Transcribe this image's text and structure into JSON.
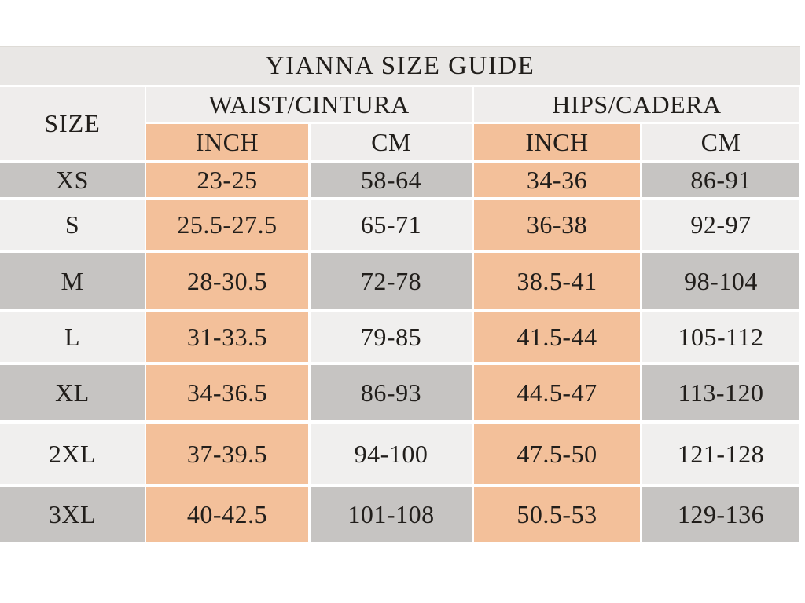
{
  "title": "YIANNA SIZE GUIDE",
  "table": {
    "size_header": "SIZE",
    "groups": [
      {
        "label": "WAIST/CINTURA"
      },
      {
        "label": "HIPS/CADERA"
      }
    ],
    "unit_headers": {
      "waist_inch": "INCH",
      "waist_cm": "CM",
      "hips_inch": "INCH",
      "hips_cm": "CM"
    },
    "rows": [
      {
        "size": "XS",
        "waist_inch": "23-25",
        "waist_cm": "58-64",
        "hips_inch": "34-36",
        "hips_cm": "86-91"
      },
      {
        "size": "S",
        "waist_inch": "25.5-27.5",
        "waist_cm": "65-71",
        "hips_inch": "36-38",
        "hips_cm": "92-97"
      },
      {
        "size": "M",
        "waist_inch": "28-30.5",
        "waist_cm": "72-78",
        "hips_inch": "38.5-41",
        "hips_cm": "98-104"
      },
      {
        "size": "L",
        "waist_inch": "31-33.5",
        "waist_cm": "79-85",
        "hips_inch": "41.5-44",
        "hips_cm": "105-112"
      },
      {
        "size": "XL",
        "waist_inch": "34-36.5",
        "waist_cm": "86-93",
        "hips_inch": "44.5-47",
        "hips_cm": "113-120"
      },
      {
        "size": "2XL",
        "waist_inch": "37-39.5",
        "waist_cm": "94-100",
        "hips_inch": "47.5-50",
        "hips_cm": "121-128"
      },
      {
        "size": "3XL",
        "waist_inch": "40-42.5",
        "waist_cm": "101-108",
        "hips_inch": "50.5-53",
        "hips_cm": "129-136"
      }
    ]
  },
  "colors": {
    "accent_peach": "#f3c09a",
    "row_gray": "#c6c4c2",
    "row_light": "#f0efee",
    "title_band": "#e9e7e5",
    "header_band": "#efedec",
    "text": "#211e1b",
    "background": "#ffffff"
  }
}
